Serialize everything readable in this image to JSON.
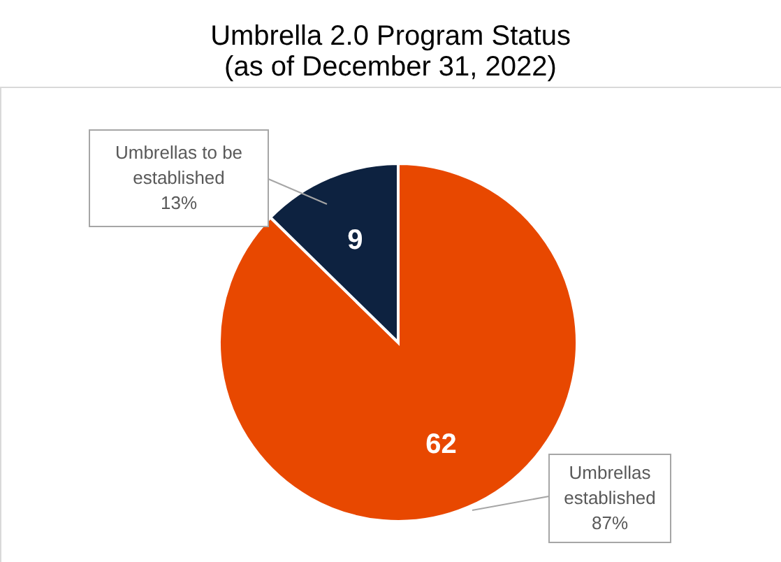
{
  "chart_data": {
    "type": "pie",
    "title": "Umbrella 2.0 Program Status",
    "subtitle": "(as of December 31, 2022)",
    "categories": [
      "Umbrellas established",
      "Umbrellas to be established"
    ],
    "values": [
      62,
      9
    ],
    "colors": [
      "#e84800",
      "#0d2240"
    ],
    "data_labels": true,
    "annotations": [
      "87%",
      "13%"
    ]
  }
}
